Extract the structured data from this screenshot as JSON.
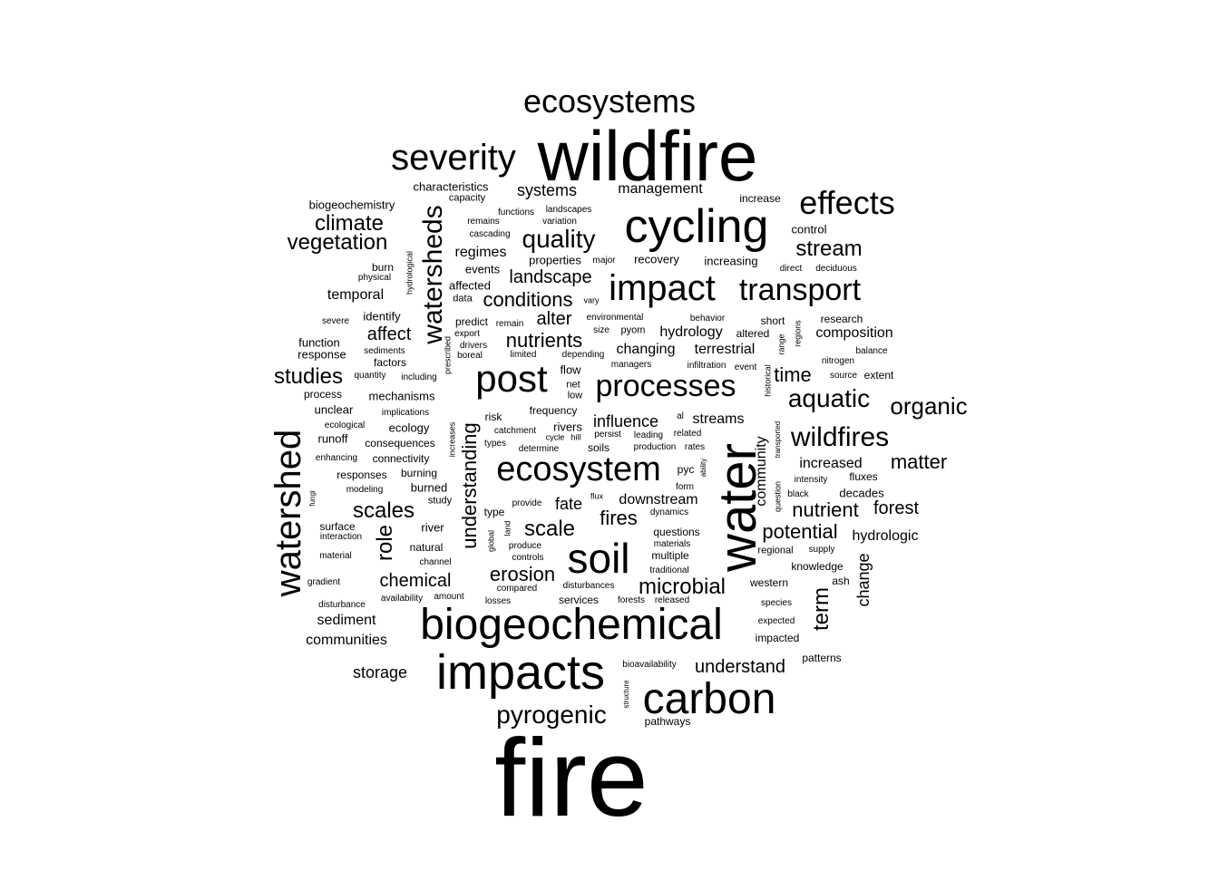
{
  "text_color": "#000000",
  "background": "#ffffff",
  "words": [
    "fire",
    "wildfire",
    "water",
    "impacts",
    "biogeochemical",
    "carbon",
    "cycling",
    "soil",
    "post",
    "ecosystem",
    "watershed",
    "ecosystems",
    "severity",
    "effects",
    "impact",
    "transport",
    "processes",
    "watersheds",
    "wildfires",
    "quality",
    "aquatic",
    "organic",
    "pyrogenic",
    "climate",
    "vegetation",
    "stream",
    "scales",
    "studies",
    "scale",
    "nutrients",
    "conditions",
    "landscape",
    "microbial",
    "understanding",
    "matter",
    "erosion",
    "term",
    "potential",
    "nutrient",
    "forest",
    "chemical",
    "fires",
    "time",
    "understand",
    "role",
    "community",
    "sediment",
    "communities",
    "storage",
    "change",
    "alter",
    "affect",
    "temporal",
    "systems",
    "management",
    "downstream",
    "fate",
    "influence",
    "streams",
    "increased",
    "hydrologic",
    "hydrology",
    "changing",
    "terrestrial",
    "composition",
    "regimes",
    "characteristics",
    "biogeochemistry",
    "capacity",
    "functions",
    "landscapes",
    "remains",
    "variation",
    "cascading",
    "increase",
    "control",
    "burn",
    "physical",
    "hydrological",
    "properties",
    "events",
    "major",
    "recovery",
    "increasing",
    "direct",
    "deciduous",
    "affected",
    "data",
    "vary",
    "identify",
    "severe",
    "predict",
    "remain",
    "environmental",
    "pyom",
    "behavior",
    "short",
    "research",
    "regions",
    "range",
    "export",
    "size",
    "altered",
    "function",
    "drivers",
    "response",
    "sediments",
    "boreal",
    "limited",
    "depending",
    "balance",
    "factors",
    "quantity",
    "including",
    "prescribed",
    "flow",
    "managers",
    "infiltration",
    "event",
    "historical",
    "nitrogen",
    "source",
    "extent",
    "process",
    "mechanisms",
    "net",
    "low",
    "unclear",
    "implications",
    "risk",
    "frequency",
    "al",
    "ecological",
    "ecology",
    "increases",
    "rivers",
    "runoff",
    "catchment",
    "persist",
    "cycle",
    "hill",
    "leading",
    "related",
    "transported",
    "consequences",
    "types",
    "determine",
    "soils",
    "production",
    "rates",
    "enhancing",
    "connectivity",
    "burning",
    "pyc",
    "ability",
    "intensity",
    "fluxes",
    "responses",
    "form",
    "question",
    "black",
    "decades",
    "modeling",
    "burned",
    "provide",
    "flux",
    "dynamics",
    "fungi",
    "study",
    "type",
    "surface",
    "river",
    "land",
    "questions",
    "interaction",
    "global",
    "produce",
    "materials",
    "natural",
    "multiple",
    "regional",
    "supply",
    "material",
    "channel",
    "controls",
    "knowledge",
    "traditional",
    "ash",
    "gradient",
    "compared",
    "disturbances",
    "western",
    "disturbance",
    "availability",
    "amount",
    "losses",
    "services",
    "forests",
    "released",
    "species",
    "expected",
    "impacted",
    "patterns",
    "bioavailability",
    "structure",
    "pathways"
  ]
}
